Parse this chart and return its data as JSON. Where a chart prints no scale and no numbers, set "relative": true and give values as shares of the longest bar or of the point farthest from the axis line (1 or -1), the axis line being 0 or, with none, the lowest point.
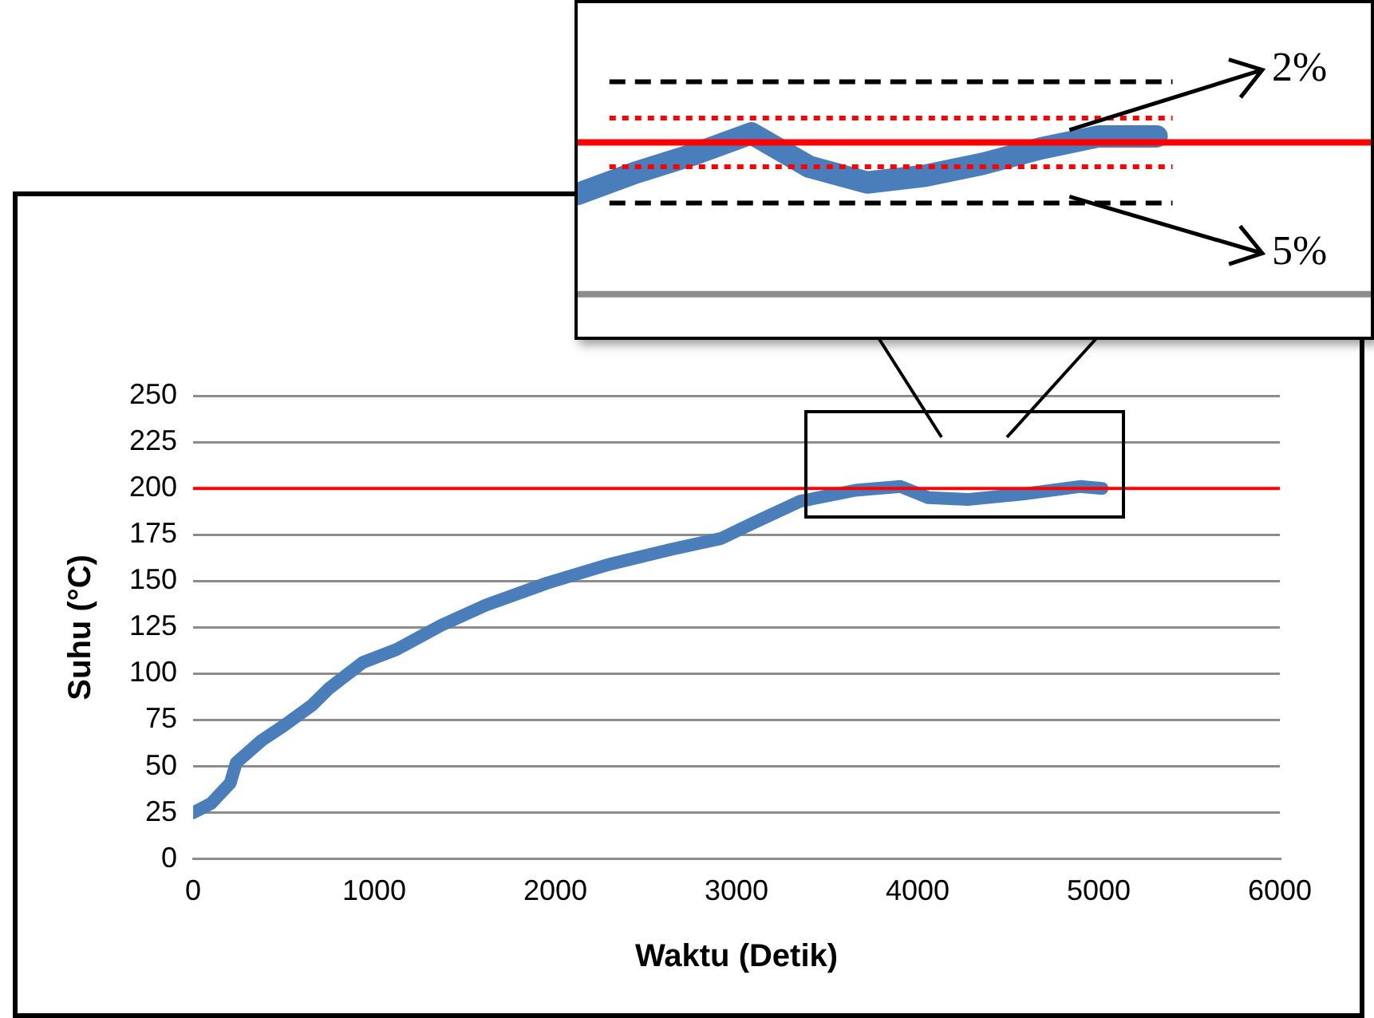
{
  "chart_data": [
    {
      "type": "line",
      "xlabel": "Waktu (Detik)",
      "ylabel": "Suhu (°C)",
      "x": [
        0,
        99,
        205,
        238,
        378,
        501,
        656,
        749,
        935,
        1121,
        1368,
        1616,
        1957,
        2297,
        2637,
        2916,
        3086,
        3349,
        3658,
        3906,
        4059,
        4276,
        4587,
        4896,
        5019
      ],
      "series": [
        {
          "color": "#4a7ebb",
          "values": [
            25,
            30,
            41,
            52,
            64,
            72,
            83,
            92,
            106,
            113,
            126,
            137,
            149,
            159,
            167,
            173,
            181,
            193,
            199,
            201,
            195,
            194,
            197,
            201,
            200
          ]
        }
      ],
      "xlim": [
        0,
        6000
      ],
      "xticks": [
        0,
        1000,
        2000,
        3000,
        4000,
        5000,
        6000
      ],
      "ylim": [
        0,
        250
      ],
      "yticks": [
        0,
        25,
        50,
        75,
        100,
        125,
        150,
        175,
        200,
        225,
        250
      ],
      "grid": "y",
      "legend": false,
      "marker": "none",
      "line_style": "solid",
      "ref_lines": [
        {
          "axis": "y",
          "value": 200,
          "color": "#ff0000",
          "line_style": "solid"
        }
      ]
    },
    {
      "type": "line",
      "categories": [
        null,
        null,
        null,
        null,
        null,
        null,
        null,
        null,
        null,
        null,
        null
      ],
      "relative": true,
      "series": [
        {
          "color": "#4a7ebb",
          "values": [
            0.623,
            0.755,
            0.868,
            1,
            0.792,
            0.694,
            0.736,
            0.811,
            0.906,
            0.981,
            0.981
          ]
        }
      ],
      "legend": false,
      "marker": "none",
      "line_style": "solid",
      "annotations": [
        "2%",
        "5%"
      ],
      "ref_lines": [
        {
          "axis": "y",
          "value": 0.943,
          "color": "#ff0000",
          "line_style": "solid"
        },
        {
          "axis": "y",
          "value": 1.32,
          "color": "#000000",
          "line_style": "dashed"
        },
        {
          "axis": "y",
          "value": 1.094,
          "color": "#ff0000",
          "line_style": "dotted"
        },
        {
          "axis": "y",
          "value": 0.792,
          "color": "#ff0000",
          "line_style": "dotted"
        },
        {
          "axis": "y",
          "value": 0.566,
          "color": "#000000",
          "line_style": "dashed"
        }
      ]
    }
  ]
}
